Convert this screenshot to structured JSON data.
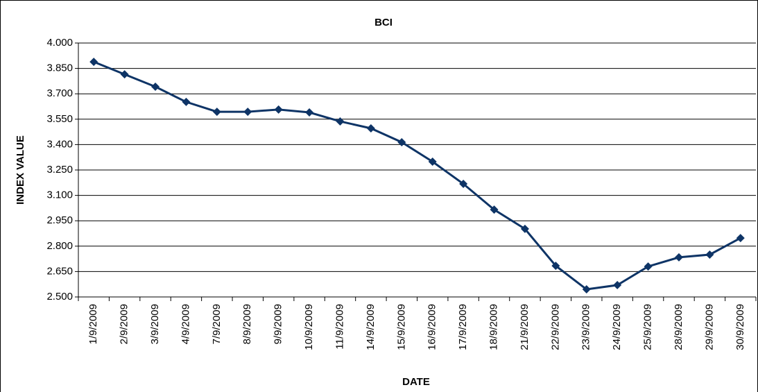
{
  "chart_data": {
    "type": "line",
    "title": "BCI",
    "x_label": "DATE",
    "y_label": "INDEX VALUE",
    "categories": [
      "1/9/2009",
      "2/9/2009",
      "3/9/2009",
      "4/9/2009",
      "7/9/2009",
      "8/9/2009",
      "9/9/2009",
      "10/9/2009",
      "11/9/2009",
      "14/9/2009",
      "15/9/2009",
      "16/9/2009",
      "17/9/2009",
      "18/9/2009",
      "21/9/2009",
      "22/9/2009",
      "23/9/2009",
      "24/9/2009",
      "25/9/2009",
      "28/9/2009",
      "29/9/2009",
      "30/9/2009"
    ],
    "series": [
      {
        "name": "BCI",
        "color": "#0e3466",
        "values": [
          3.889,
          3.815,
          3.742,
          3.652,
          3.594,
          3.594,
          3.607,
          3.59,
          3.537,
          3.496,
          3.414,
          3.299,
          3.168,
          3.016,
          2.902,
          2.684,
          2.545,
          2.57,
          2.68,
          2.734,
          2.75,
          2.848
        ]
      }
    ],
    "ylim": [
      2.5,
      4.0
    ],
    "yticks": [
      {
        "value": 2.5,
        "label": "2.500"
      },
      {
        "value": 2.65,
        "label": "2.650"
      },
      {
        "value": 2.8,
        "label": "2.800"
      },
      {
        "value": 2.95,
        "label": "2.950"
      },
      {
        "value": 3.1,
        "label": "3.100"
      },
      {
        "value": 3.25,
        "label": "3.250"
      },
      {
        "value": 3.4,
        "label": "3.400"
      },
      {
        "value": 3.55,
        "label": "3.550"
      },
      {
        "value": 3.7,
        "label": "3.700"
      },
      {
        "value": 3.85,
        "label": "3.850"
      },
      {
        "value": 4.0,
        "label": "4.000"
      }
    ],
    "grid": true
  }
}
